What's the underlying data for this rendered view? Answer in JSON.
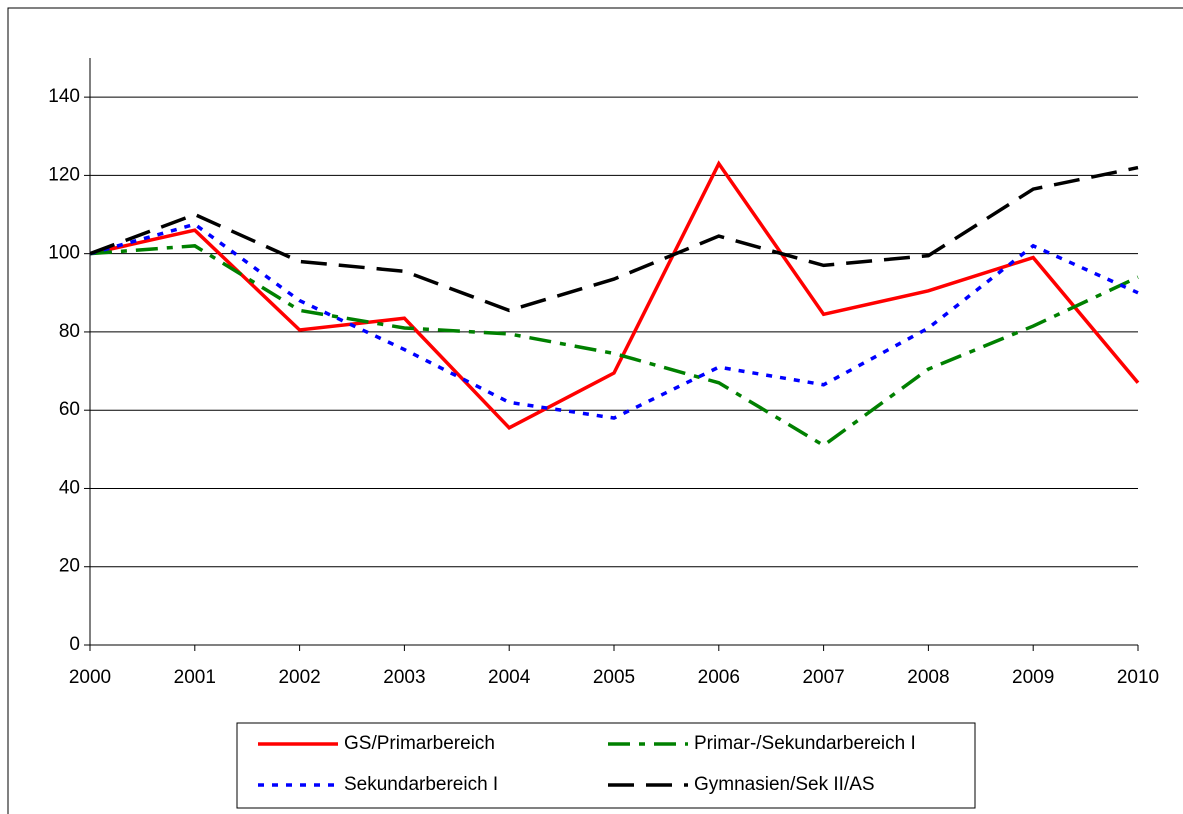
{
  "chart_data": {
    "type": "line",
    "x": [
      2000,
      2001,
      2002,
      2003,
      2004,
      2005,
      2006,
      2007,
      2008,
      2009,
      2010
    ],
    "xlim": [
      2000,
      2010
    ],
    "xticks": [
      2000,
      2001,
      2002,
      2003,
      2004,
      2005,
      2006,
      2007,
      2008,
      2009,
      2010
    ],
    "ylim": [
      0,
      150
    ],
    "yticks": [
      0,
      20,
      40,
      60,
      80,
      100,
      120,
      140
    ],
    "grid": true,
    "legend": "bottom",
    "series": [
      {
        "name": "GS/Primarbereich",
        "color": "#ff0000",
        "style": "solid",
        "values": [
          100,
          106,
          80.5,
          83.5,
          55.5,
          69.5,
          123,
          84.5,
          90.5,
          99,
          67
        ]
      },
      {
        "name": "Primar-/Sekundarbereich I",
        "color": "#008000",
        "style": "dashdot",
        "values": [
          100,
          102,
          85.5,
          81,
          79.5,
          74.5,
          67,
          51,
          70.5,
          81.5,
          94
        ]
      },
      {
        "name": "Sekundarbereich I",
        "color": "#0000ff",
        "style": "dotted",
        "values": [
          100,
          107.5,
          88,
          75.5,
          62,
          58,
          71,
          66.5,
          81,
          102,
          90
        ]
      },
      {
        "name": "Gymnasien/Sek II/AS",
        "color": "#000000",
        "style": "dashed",
        "values": [
          100,
          110,
          98,
          95.5,
          85.5,
          93.5,
          104.5,
          97,
          99.5,
          116.5,
          122
        ]
      }
    ]
  }
}
